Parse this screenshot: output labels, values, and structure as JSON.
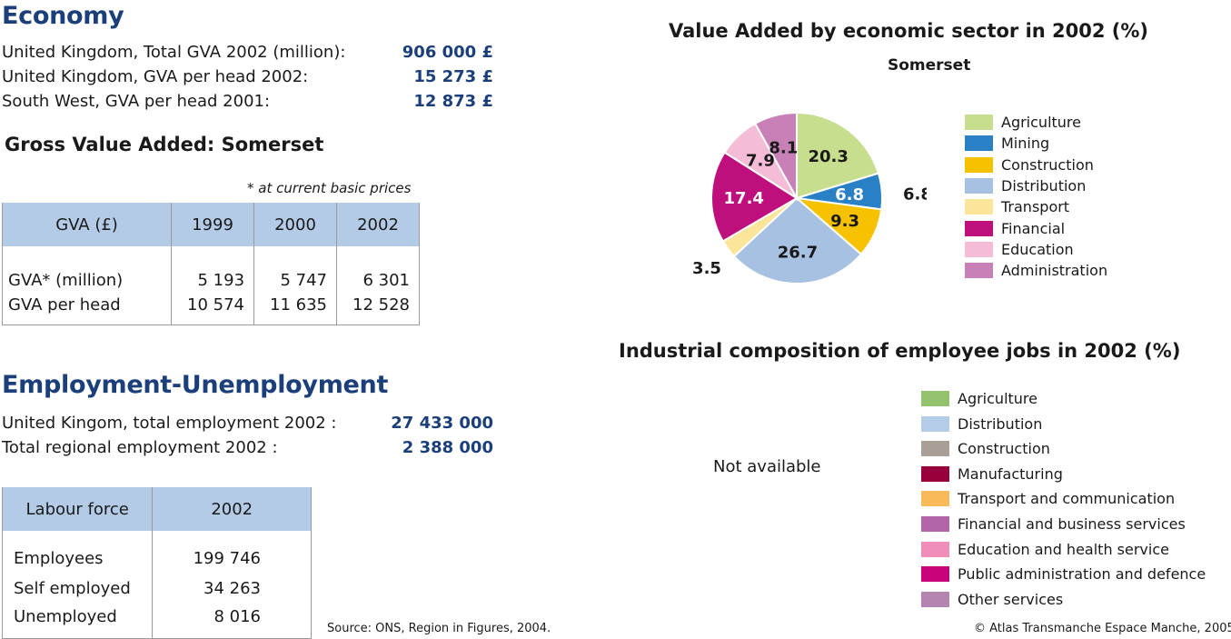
{
  "economy": {
    "heading": "Economy",
    "rows": [
      {
        "label": "United Kingdom, Total GVA 2002 (million):",
        "value": "906 000 £"
      },
      {
        "label": "United Kingdom, GVA per head 2002:",
        "value": "15 273 £"
      },
      {
        "label": "South West, GVA per head 2001:",
        "value": "12 873 £"
      }
    ]
  },
  "gva": {
    "heading": "Gross Value Added: Somerset",
    "note": "* at current basic prices",
    "header": [
      "GVA (£)",
      "1999",
      "2000",
      "2002"
    ],
    "rows": [
      {
        "label": "GVA* (million)",
        "values": [
          "5 193",
          "5 747",
          "6 301"
        ]
      },
      {
        "label": "GVA per head",
        "values": [
          "10 574",
          "11 635",
          "12 528"
        ]
      }
    ]
  },
  "employment": {
    "heading": "Employment-Unemployment",
    "rows": [
      {
        "label": "United Kingom, total employment 2002 :",
        "value": "27 433 000"
      },
      {
        "label": "Total regional employment 2002 :",
        "value": "2 388 000"
      }
    ]
  },
  "labour": {
    "header": [
      "Labour force",
      "2002"
    ],
    "rows": [
      {
        "label": "Employees",
        "value": "199 746"
      },
      {
        "label": "Self employed",
        "value": "34 263"
      },
      {
        "label": "Unemployed",
        "value": "8 016"
      }
    ]
  },
  "chart_data": [
    {
      "type": "pie",
      "title": "Value Added by economic sector in 2002 (%)",
      "subtitle": "Somerset",
      "legend_position": "right",
      "slices": [
        {
          "name": "Agriculture",
          "value": 20.3,
          "label": "20.3",
          "color": "#c8de8f"
        },
        {
          "name": "Mining",
          "value": 6.8,
          "label": "6.8",
          "color": "#2a80c4"
        },
        {
          "name": "Construction",
          "value": 9.3,
          "label": "9.3",
          "color": "#f6c200"
        },
        {
          "name": "Distribution",
          "value": 26.7,
          "label": "26.7",
          "color": "#a7c1e3"
        },
        {
          "name": "Transport",
          "value": 3.5,
          "label": "3.5",
          "color": "#fbe59a"
        },
        {
          "name": "Financial",
          "value": 17.4,
          "label": "17.4",
          "color": "#be0f7d"
        },
        {
          "name": "Education",
          "value": 7.9,
          "label": "7.9",
          "color": "#f4bcd6"
        },
        {
          "name": "Administration",
          "value": 8.1,
          "label": "8.1",
          "color": "#c781b6"
        }
      ]
    },
    {
      "type": "pie",
      "title": "Industrial composition of employee jobs in 2002 (%)",
      "status_text": "Not available",
      "legend_position": "right",
      "legend": [
        {
          "name": "Agriculture",
          "color": "#93c26c"
        },
        {
          "name": "Distribution",
          "color": "#b4cce8"
        },
        {
          "name": "Construction",
          "color": "#a8a096"
        },
        {
          "name": "Manufacturing",
          "color": "#98003c"
        },
        {
          "name": "Transport and communication",
          "color": "#f9bb5a"
        },
        {
          "name": "Financial and business services",
          "color": "#b265a7"
        },
        {
          "name": "Education and health service",
          "color": "#f08cb8"
        },
        {
          "name": "Public administration and defence",
          "color": "#c8037a"
        },
        {
          "name": "Other services",
          "color": "#b485b0"
        }
      ]
    }
  ],
  "footer": {
    "source": "Source: ONS, Region in Figures, 2004.",
    "copyright": "© Atlas Transmanche Espace Manche, 2005."
  }
}
